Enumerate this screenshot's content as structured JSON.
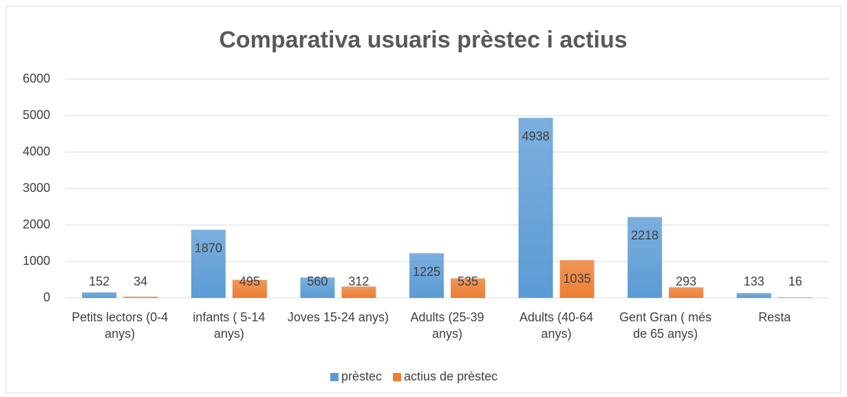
{
  "chart_data": {
    "type": "bar",
    "title": "Comparativa usuaris prèstec i actius",
    "categories": [
      "Petits lectors (0-4 anys)",
      "infants ( 5-14 anys)",
      "Joves 15-24 anys)",
      "Adults (25-39 anys)",
      "Adults (40-64 anys)",
      "Gent Gran ( més de 65 anys)",
      "Resta"
    ],
    "series": [
      {
        "name": "prèstec",
        "color": "#5b9bd5",
        "values": [
          152,
          1870,
          560,
          1225,
          4938,
          2218,
          133
        ]
      },
      {
        "name": "actius de prèstec",
        "color": "#ed7d31",
        "values": [
          34,
          495,
          312,
          535,
          1035,
          293,
          16
        ]
      }
    ],
    "ylim": [
      0,
      6000
    ],
    "yticks": [
      0,
      1000,
      2000,
      3000,
      4000,
      5000,
      6000
    ],
    "grid": true,
    "legend": "bottom"
  }
}
